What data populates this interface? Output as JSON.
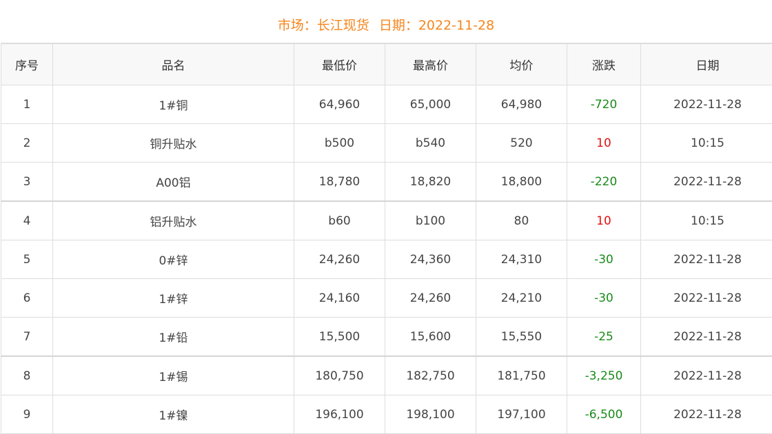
{
  "header": {
    "market": "市场：长江现货",
    "date": "日期：2022-11-28"
  },
  "table": {
    "columns": [
      "序号",
      "品名",
      "最低价",
      "最高价",
      "均价",
      "涨跌",
      "日期"
    ],
    "rows": [
      [
        "1",
        "1#铜",
        "64,960",
        "65,000",
        "64,980",
        "-720",
        "2022-11-28"
      ],
      [
        "2",
        "铜升贴水",
        "b500",
        "b540",
        "520",
        "10",
        "10:15"
      ],
      [
        "3",
        "A00铝",
        "18,780",
        "18,820",
        "18,800",
        "-220",
        "2022-11-28"
      ],
      [
        "4",
        "铝升贴水",
        "b60",
        "b100",
        "80",
        "10",
        "10:15"
      ],
      [
        "5",
        "0#锌",
        "24,260",
        "24,360",
        "24,310",
        "-30",
        "2022-11-28"
      ],
      [
        "6",
        "1#锌",
        "24,160",
        "24,260",
        "24,210",
        "-30",
        "2022-11-28"
      ],
      [
        "7",
        "1#铅",
        "15,500",
        "15,600",
        "15,550",
        "-25",
        "2022-11-28"
      ],
      [
        "8",
        "1#锡",
        "180,750",
        "182,750",
        "181,750",
        "-3,250",
        "2022-11-28"
      ],
      [
        "9",
        "1#镍",
        "196,100",
        "198,100",
        "197,100",
        "-6,500",
        "2022-11-28"
      ]
    ]
  },
  "colors": {
    "title": "#f7851c",
    "down": "#1a8a1a",
    "up": "#e01010"
  }
}
